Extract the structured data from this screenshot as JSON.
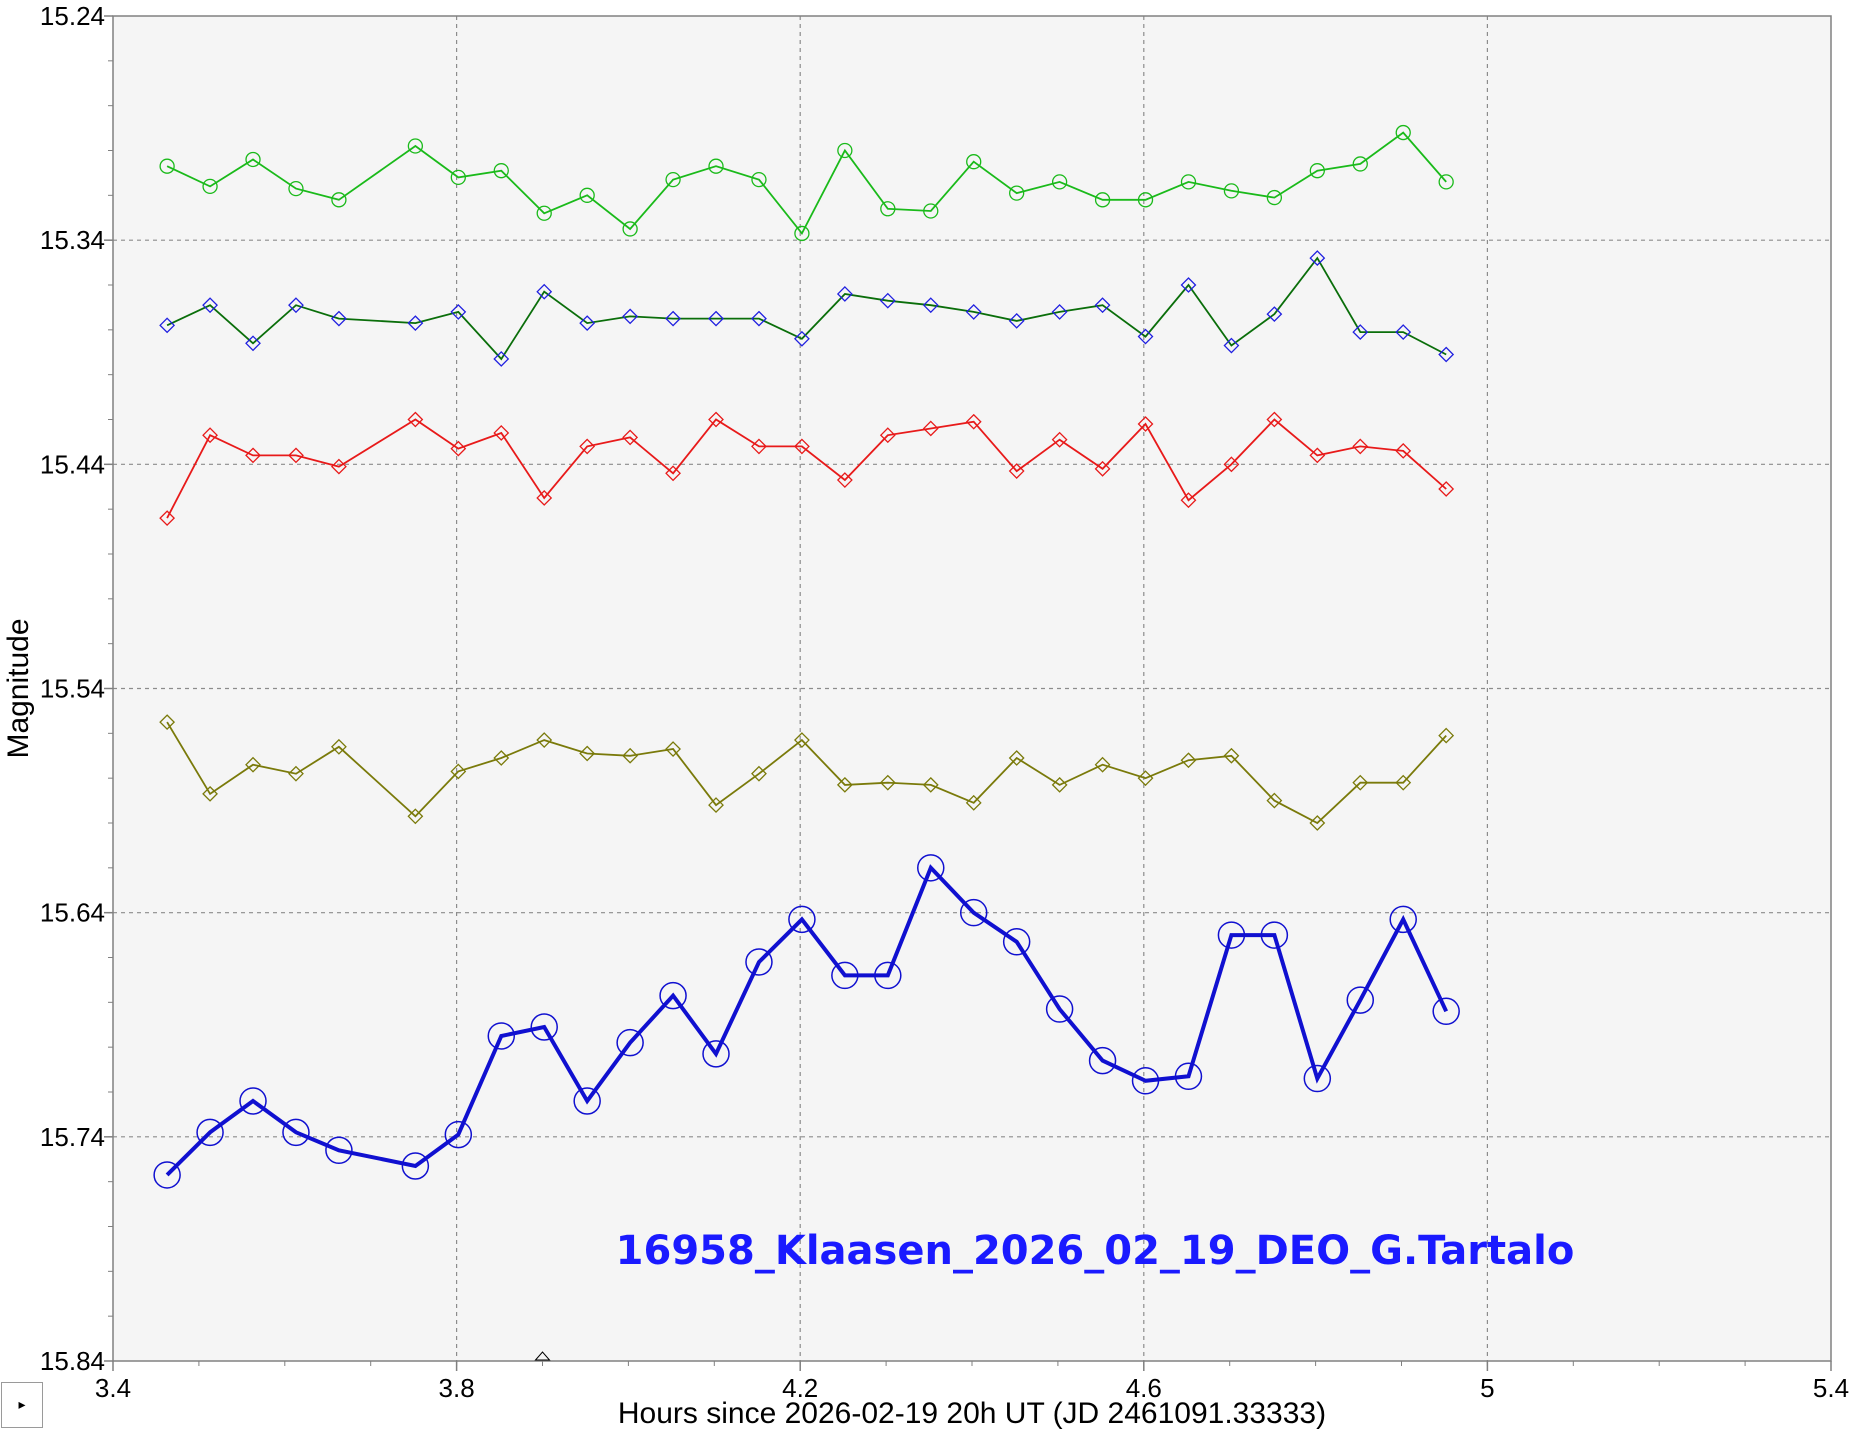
{
  "chart_data": {
    "type": "line",
    "title": "16958_Klaasen_2026_02_19_DEO_G.Tartalo",
    "xlabel": "Hours since 2026-02-19 20h UT (JD 2461091.33333)",
    "ylabel": "Magnitude",
    "xlim": [
      3.4,
      5.4
    ],
    "ylim": [
      15.24,
      15.84
    ],
    "y_inverted": true,
    "x_ticks": [
      "3.4",
      "3.8",
      "4.2",
      "4.6",
      "5",
      "5.4"
    ],
    "y_ticks": [
      "15.24",
      "15.34",
      "15.44",
      "15.54",
      "15.64",
      "15.74",
      "15.84"
    ],
    "grid": true,
    "legend": "none",
    "x": [
      3.463,
      3.513,
      3.563,
      3.613,
      3.663,
      3.752,
      3.802,
      3.852,
      3.902,
      3.952,
      4.002,
      4.052,
      4.102,
      4.152,
      4.202,
      4.252,
      4.302,
      4.352,
      4.402,
      4.452,
      4.502,
      4.552,
      4.602,
      4.652,
      4.702,
      4.752,
      4.802,
      4.852,
      4.902,
      4.952
    ],
    "series": [
      {
        "color": "#1aba1a",
        "marker": "circle",
        "values": [
          15.307,
          15.316,
          15.304,
          15.317,
          15.322,
          15.298,
          15.312,
          15.309,
          15.328,
          15.32,
          15.335,
          15.313,
          15.307,
          15.313,
          15.337,
          15.3,
          15.326,
          15.327,
          15.305,
          15.319,
          15.314,
          15.322,
          15.322,
          15.314,
          15.318,
          15.321,
          15.309,
          15.306,
          15.292,
          15.314
        ]
      },
      {
        "color": "#0a6e0a",
        "marker": "diamond",
        "marker_color": "#2020e0",
        "values": [
          15.378,
          15.369,
          15.386,
          15.369,
          15.375,
          15.377,
          15.372,
          15.393,
          15.363,
          15.377,
          15.374,
          15.375,
          15.375,
          15.375,
          15.384,
          15.364,
          15.367,
          15.369,
          15.372,
          15.376,
          15.372,
          15.369,
          15.383,
          15.36,
          15.387,
          15.373,
          15.348,
          15.381,
          15.381,
          15.391
        ]
      },
      {
        "color": "#e81a1a",
        "marker": "diamond",
        "values": [
          15.464,
          15.427,
          15.436,
          15.436,
          15.441,
          15.42,
          15.433,
          15.426,
          15.455,
          15.432,
          15.428,
          15.444,
          15.42,
          15.432,
          15.432,
          15.447,
          15.427,
          15.424,
          15.421,
          15.443,
          15.429,
          15.442,
          15.422,
          15.456,
          15.44,
          15.42,
          15.436,
          15.432,
          15.434,
          15.451
        ]
      },
      {
        "color": "#7a7a0a",
        "marker": "diamond",
        "values": [
          15.555,
          15.587,
          15.574,
          15.578,
          15.566,
          15.597,
          15.577,
          15.571,
          15.563,
          15.569,
          15.57,
          15.567,
          15.592,
          15.578,
          15.563,
          15.583,
          15.582,
          15.583,
          15.591,
          15.571,
          15.583,
          15.574,
          15.58,
          15.572,
          15.57,
          15.59,
          15.6,
          15.582,
          15.582,
          15.561
        ]
      },
      {
        "color": "#1010d0",
        "marker": "circle",
        "bold": true,
        "values": [
          15.757,
          15.738,
          15.724,
          15.738,
          15.746,
          15.753,
          15.739,
          15.695,
          15.691,
          15.724,
          15.698,
          15.677,
          15.703,
          15.662,
          15.643,
          15.668,
          15.668,
          15.62,
          15.64,
          15.653,
          15.683,
          15.706,
          15.715,
          15.713,
          15.65,
          15.65,
          15.714,
          15.679,
          15.643,
          15.684
        ]
      }
    ]
  },
  "ui": {
    "corner_button_glyph": "▸"
  }
}
